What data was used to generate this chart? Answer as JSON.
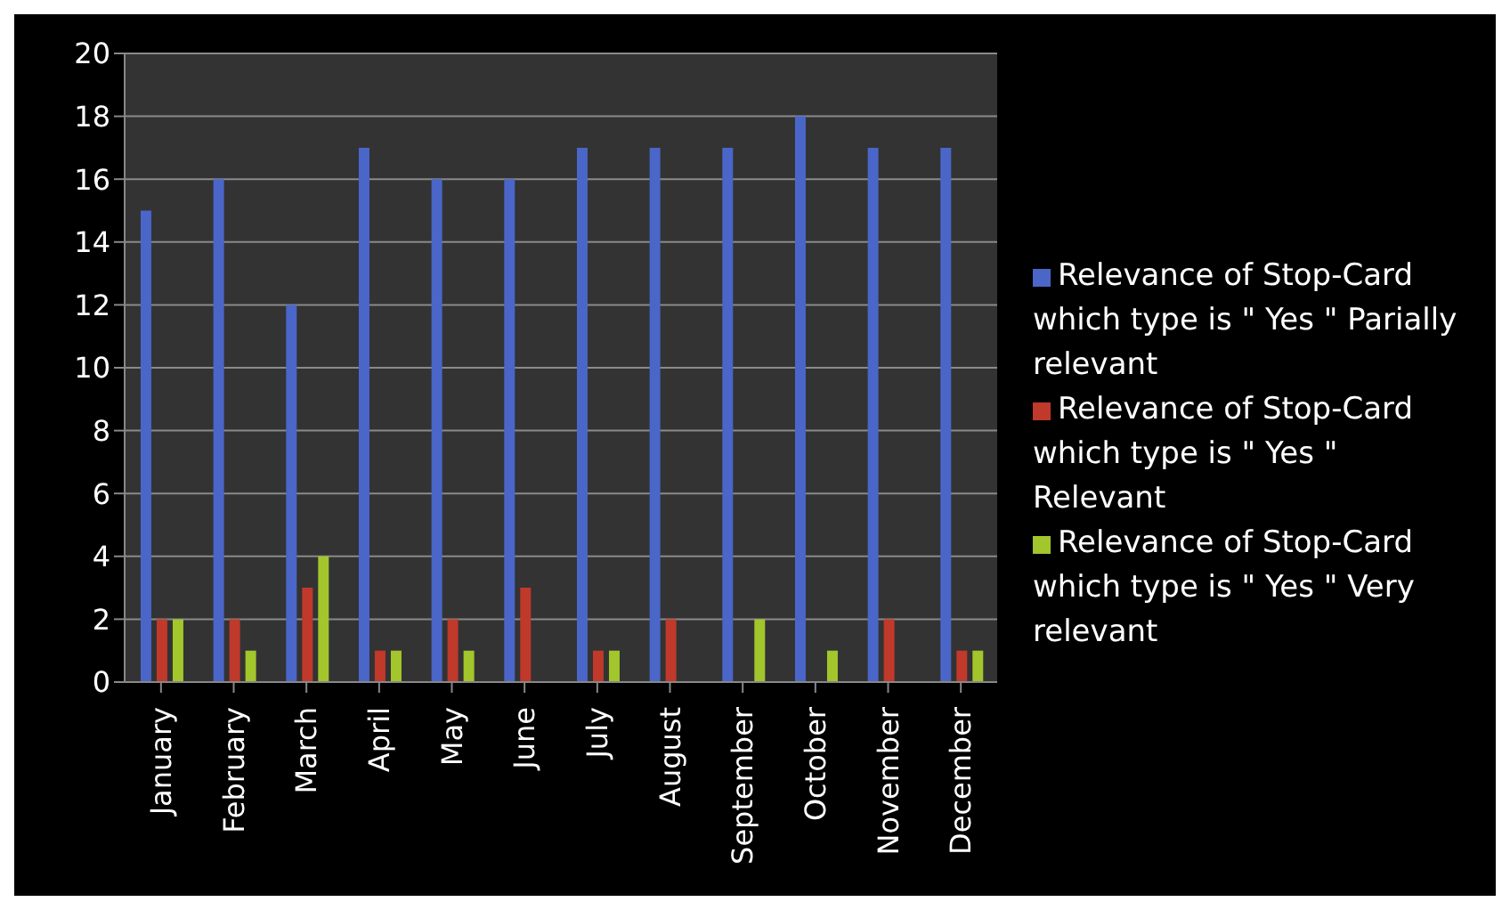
{
  "chart_data": {
    "type": "bar",
    "categories": [
      "January",
      "February",
      "March",
      "April",
      "May",
      "June",
      "July",
      "August",
      "September",
      "October",
      "November",
      "December"
    ],
    "series": [
      {
        "name": "Relevance of Stop-Card which type is \" Yes \" Parially relevant",
        "color": "#4a66c8",
        "values": [
          15,
          16,
          12,
          17,
          16,
          16,
          17,
          17,
          17,
          18,
          17,
          17
        ]
      },
      {
        "name": "Relevance of Stop-Card which type is \" Yes \" Relevant",
        "color": "#c0392b",
        "values": [
          2,
          2,
          3,
          1,
          2,
          3,
          1,
          2,
          0,
          0,
          2,
          1
        ]
      },
      {
        "name": "Relevance of Stop-Card which type is \" Yes \" Very relevant",
        "color": "#a2c62c",
        "values": [
          2,
          1,
          4,
          1,
          1,
          0,
          1,
          0,
          2,
          1,
          0,
          1
        ]
      }
    ],
    "ylim": [
      0,
      20
    ],
    "yticks": [
      0,
      2,
      4,
      6,
      8,
      10,
      12,
      14,
      16,
      18,
      20
    ],
    "grid": "y",
    "legend": "right"
  }
}
